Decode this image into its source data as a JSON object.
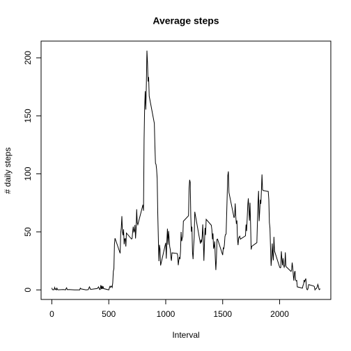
{
  "chart_data": {
    "type": "line",
    "title": "Average steps",
    "xlabel": "Interval",
    "ylabel": "# daily steps",
    "color": "#000000",
    "x": [
      0,
      5,
      10,
      15,
      20,
      25,
      30,
      35,
      40,
      45,
      50,
      55,
      100,
      110,
      120,
      125,
      130,
      135,
      140,
      150,
      200,
      230,
      245,
      250,
      255,
      300,
      320,
      330,
      340,
      355,
      400,
      410,
      420,
      425,
      430,
      435,
      440,
      445,
      450,
      455,
      500,
      505,
      510,
      515,
      520,
      525,
      530,
      535,
      540,
      545,
      550,
      555,
      600,
      605,
      610,
      615,
      620,
      625,
      630,
      635,
      640,
      645,
      650,
      655,
      700,
      705,
      710,
      715,
      720,
      725,
      730,
      735,
      740,
      745,
      750,
      755,
      800,
      805,
      810,
      815,
      820,
      825,
      830,
      835,
      840,
      845,
      850,
      855,
      900,
      905,
      910,
      915,
      920,
      925,
      930,
      935,
      940,
      945,
      950,
      955,
      1000,
      1005,
      1010,
      1015,
      1020,
      1025,
      1030,
      1035,
      1040,
      1045,
      1050,
      1055,
      1100,
      1105,
      1110,
      1115,
      1120,
      1125,
      1130,
      1135,
      1140,
      1145,
      1150,
      1155,
      1200,
      1205,
      1210,
      1215,
      1220,
      1225,
      1230,
      1235,
      1240,
      1245,
      1250,
      1255,
      1300,
      1305,
      1310,
      1315,
      1320,
      1325,
      1330,
      1335,
      1340,
      1345,
      1350,
      1355,
      1400,
      1405,
      1410,
      1415,
      1420,
      1425,
      1430,
      1435,
      1440,
      1445,
      1450,
      1455,
      1500,
      1505,
      1510,
      1515,
      1520,
      1525,
      1530,
      1535,
      1540,
      1545,
      1550,
      1555,
      1600,
      1605,
      1610,
      1615,
      1620,
      1625,
      1630,
      1635,
      1640,
      1645,
      1650,
      1655,
      1700,
      1705,
      1710,
      1715,
      1720,
      1725,
      1730,
      1735,
      1740,
      1745,
      1750,
      1755,
      1800,
      1805,
      1810,
      1815,
      1820,
      1825,
      1830,
      1835,
      1840,
      1845,
      1850,
      1855,
      1900,
      1905,
      1910,
      1915,
      1920,
      1925,
      1930,
      1935,
      1940,
      1945,
      1950,
      1955,
      2000,
      2005,
      2010,
      2015,
      2020,
      2025,
      2030,
      2035,
      2040,
      2045,
      2050,
      2055,
      2100,
      2105,
      2110,
      2115,
      2120,
      2125,
      2130,
      2135,
      2140,
      2145,
      2150,
      2155,
      2200,
      2205,
      2210,
      2215,
      2220,
      2225,
      2230,
      2235,
      2240,
      2245,
      2250,
      2255,
      2300,
      2305,
      2310,
      2315,
      2320,
      2325,
      2330,
      2335,
      2340,
      2345,
      2350,
      2355
    ],
    "values": [
      1.7,
      0.3,
      0.1,
      0.2,
      0.1,
      2.1,
      0.5,
      0.9,
      0,
      1.5,
      0.3,
      0.1,
      0.3,
      0.2,
      0,
      1.1,
      1.8,
      0.2,
      0.2,
      0.3,
      0,
      0,
      0,
      1.5,
      0.9,
      0,
      0.2,
      2.6,
      0.5,
      0.6,
      1.2,
      2.6,
      0.3,
      0.4,
      4.1,
      0.7,
      3.5,
      0.8,
      3.1,
      1.1,
      0,
      1.6,
      3,
      2.2,
      3.3,
      3,
      2.1,
      6.1,
      16,
      18.3,
      39.5,
      44.5,
      31.5,
      49.3,
      53.8,
      63.5,
      50,
      47.1,
      52.2,
      39.3,
      44,
      44.2,
      37.4,
      49,
      43.8,
      44.4,
      50.5,
      54.5,
      49.9,
      50.8,
      56,
      44.3,
      52.3,
      69.5,
      57.8,
      56.2,
      73.4,
      68.2,
      129.4,
      157.5,
      171.2,
      155.4,
      177.3,
      206.2,
      195.9,
      179.6,
      183.4,
      167,
      143.5,
      124,
      109.1,
      108.1,
      103.7,
      95.96,
      66.2,
      45.2,
      24.8,
      38.8,
      34.98,
      21.06,
      40.6,
      26.98,
      42.4,
      52.7,
      38.9,
      50.8,
      44.3,
      37.4,
      34.7,
      28.3,
      25.1,
      31.9,
      31.4,
      29.7,
      21.3,
      25.5,
      28.4,
      26.5,
      33.4,
      49.98,
      42,
      44.6,
      46,
      59.2,
      63.9,
      87.7,
      94.8,
      92.8,
      63.4,
      50.2,
      54.5,
      32.4,
      26.5,
      37.7,
      45.1,
      67.3,
      42.3,
      39.9,
      43.3,
      40.98,
      46.2,
      56.4,
      42.8,
      25.1,
      39.97,
      53.5,
      47.3,
      60.8,
      55.75,
      51.96,
      43.6,
      48.7,
      35.5,
      37.5,
      41.8,
      27.5,
      17.1,
      26.8,
      43.6,
      43.8,
      30,
      36.1,
      35.5,
      38.8,
      45.96,
      47.75,
      48.1,
      65.3,
      82.9,
      98.7,
      102.1,
      83.96,
      62.1,
      64.1,
      74.5,
      63.2,
      56.9,
      59.8,
      43.9,
      38.6,
      44.7,
      45.5,
      46.2,
      43.7,
      46.6,
      56.3,
      50.7,
      61.2,
      72.7,
      78.9,
      68.9,
      59.7,
      75.1,
      56.5,
      34.8,
      37.5,
      40.7,
      58,
      74.7,
      85.3,
      59.3,
      67.8,
      77.7,
      74.2,
      85.3,
      99.5,
      86.6,
      85.6,
      84.9,
      77.8,
      58,
      53.4,
      36.3,
      20.7,
      27.4,
      40,
      30.2,
      25.5,
      45.7,
      33.5,
      19.6,
      19,
      19.3,
      33.3,
      26.8,
      21.2,
      27.3,
      21.3,
      19.5,
      21.3,
      32.3,
      20.2,
      15.9,
      17.2,
      23.5,
      19.2,
      12.5,
      8,
      14.7,
      16.3,
      8.7,
      7.8,
      8.1,
      2.6,
      1.5,
      3.7,
      4.8,
      8.5,
      7.1,
      8.7,
      9.8,
      2.2,
      0.3,
      0.1,
      1.6,
      4.6,
      3.3,
      2.8,
      0,
      0.8,
      0.96,
      1.6,
      2.6,
      4.7,
      3.3,
      0.6,
      0.2,
      1.1
    ],
    "xlim": [
      -94.2,
      2449.2
    ],
    "ylim": [
      -8.25,
      214.42
    ],
    "xticks": [
      0,
      500,
      1000,
      1500,
      2000
    ],
    "yticks": [
      0,
      50,
      100,
      150,
      200
    ]
  }
}
